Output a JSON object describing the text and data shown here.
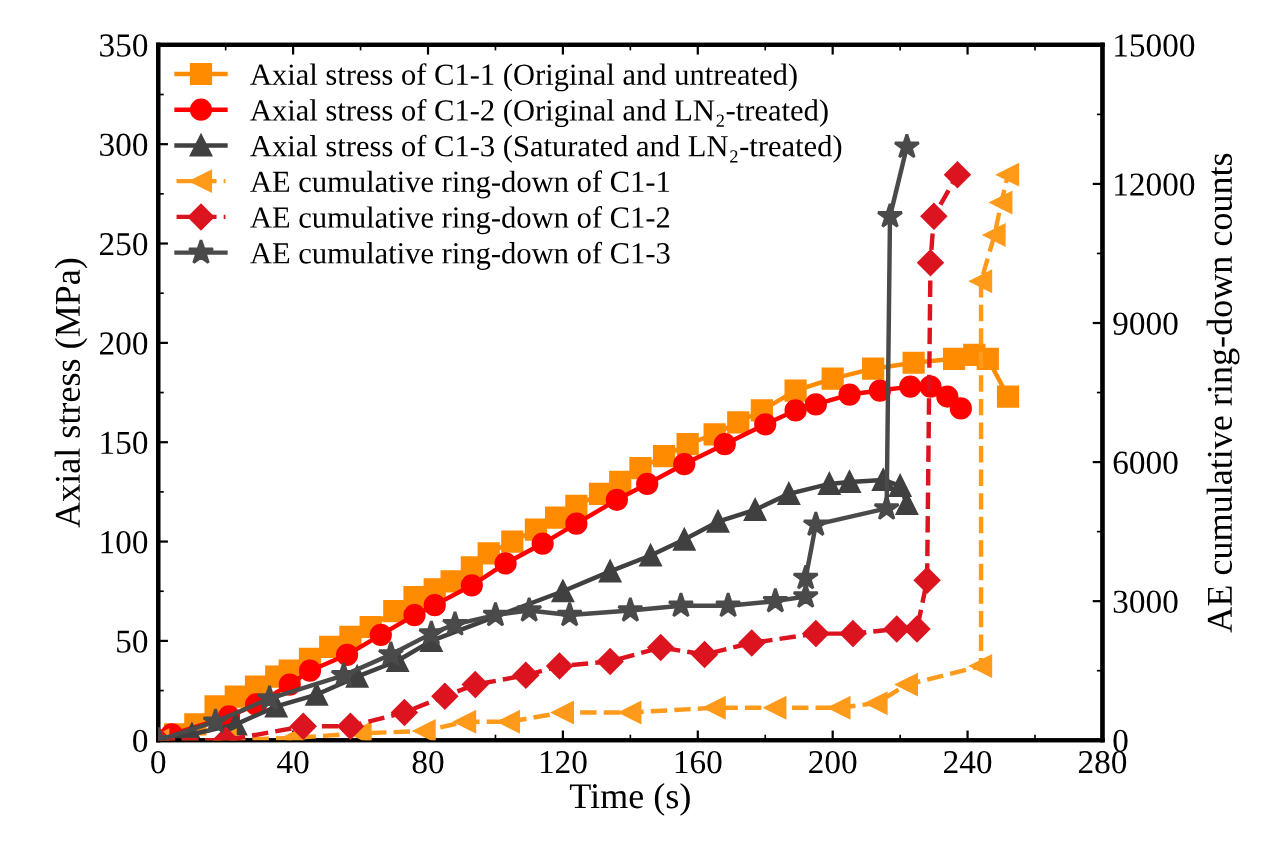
{
  "chart_data": {
    "type": "line",
    "xlabel": "Time (s)",
    "ylabel": "Axial stress (MPa)",
    "y2label": "AE cumulative ring-down counts",
    "xlim": [
      0,
      280
    ],
    "xticks": [
      0,
      40,
      80,
      120,
      160,
      200,
      240,
      280
    ],
    "ylim": [
      0,
      350
    ],
    "yticks": [
      0,
      50,
      100,
      150,
      200,
      250,
      300,
      350
    ],
    "y2lim": [
      0,
      15000
    ],
    "y2ticks": [
      0,
      3000,
      6000,
      9000,
      12000,
      15000
    ],
    "legend": "top left",
    "grid": false,
    "series": [
      {
        "name": "Axial stress of C1-1 (Original and untreated)",
        "color": "#ff8c00",
        "marker": "square",
        "line_style": "solid",
        "x": [
          0,
          5,
          11,
          17,
          23,
          29,
          35,
          39,
          45,
          51,
          57,
          63,
          70,
          76,
          82,
          87,
          93,
          98,
          105,
          112,
          118,
          124,
          131,
          137,
          143,
          150,
          157,
          165,
          172,
          179,
          189,
          200,
          212,
          224,
          236,
          242,
          246,
          252
        ],
        "values": [
          0,
          3,
          8,
          17,
          22,
          27,
          32,
          35,
          41,
          47,
          52,
          57,
          65,
          72,
          76,
          80,
          87,
          94,
          100,
          106,
          112,
          118,
          124,
          130,
          137,
          143,
          149,
          154,
          160,
          166,
          176,
          182,
          187,
          190,
          192,
          194,
          192,
          173
        ]
      },
      {
        "name": "Axial stress of C1-2 (Original and LN₂-treated)",
        "color": "#ff0000",
        "marker": "circle",
        "line_style": "solid",
        "x": [
          0,
          4,
          21,
          29,
          39,
          45,
          56,
          66,
          76,
          82,
          93,
          103,
          114,
          124,
          136,
          145,
          156,
          168,
          180,
          189,
          195,
          205,
          214,
          223,
          229,
          234,
          238
        ],
        "values": [
          0,
          3,
          12,
          18,
          28,
          35,
          43,
          53,
          63,
          68,
          78,
          89,
          99,
          109,
          121,
          129,
          139,
          149,
          159,
          166,
          169,
          174,
          176,
          178,
          178,
          173,
          167
        ]
      },
      {
        "name": "Axial stress of C1-3 (Saturated and LN₂-treated)",
        "color": "#404040",
        "marker": "triangle",
        "line_style": "solid",
        "x": [
          0,
          10,
          23,
          35,
          47,
          59,
          71,
          81,
          120,
          134,
          146,
          156,
          166,
          177,
          187,
          199,
          205,
          215,
          220,
          222
        ],
        "values": [
          0,
          3,
          8,
          17,
          23,
          32,
          40,
          50,
          75,
          85,
          93,
          101,
          110,
          116,
          124,
          129,
          130,
          131,
          128,
          119
        ]
      },
      {
        "name": "AE cumulative ring-down of C1-1",
        "color": "#ff9a1a",
        "marker": "triangle-left",
        "line_style": "dashed",
        "axis": "y2",
        "x": [
          0,
          20,
          40,
          60,
          79,
          91,
          104,
          120,
          140,
          165,
          183,
          202,
          213,
          222,
          244,
          244,
          248,
          250,
          252
        ],
        "values": [
          0,
          0,
          50,
          150,
          200,
          400,
          400,
          600,
          600,
          700,
          700,
          700,
          800,
          1200,
          1600,
          9900,
          10900,
          11600,
          12200
        ]
      },
      {
        "name": "AE cumulative ring-down of C1-2",
        "color": "#dc1420",
        "marker": "diamond",
        "line_style": "dashed",
        "axis": "y2",
        "x": [
          0,
          20,
          43,
          57,
          73,
          85,
          94,
          109,
          119,
          134,
          149,
          162,
          176,
          195,
          206,
          219,
          225,
          228,
          229,
          230,
          237
        ],
        "values": [
          0,
          0,
          300,
          300,
          600,
          950,
          1200,
          1400,
          1600,
          1700,
          2000,
          1850,
          2100,
          2300,
          2300,
          2400,
          2400,
          3450,
          10300,
          11300,
          12200
        ]
      },
      {
        "name": "AE cumulative ring-down of C1-3",
        "color": "#4a4a4a",
        "marker": "star",
        "line_style": "solid",
        "axis": "y2",
        "x": [
          0,
          17,
          33,
          55,
          69,
          81,
          88,
          100,
          110,
          122,
          140,
          155,
          169,
          183,
          192,
          192,
          195,
          216,
          217,
          222
        ],
        "values": [
          0,
          400,
          900,
          1400,
          1850,
          2300,
          2500,
          2700,
          2800,
          2700,
          2800,
          2900,
          2900,
          3000,
          3100,
          3500,
          4650,
          5000,
          11300,
          12800
        ]
      }
    ]
  }
}
